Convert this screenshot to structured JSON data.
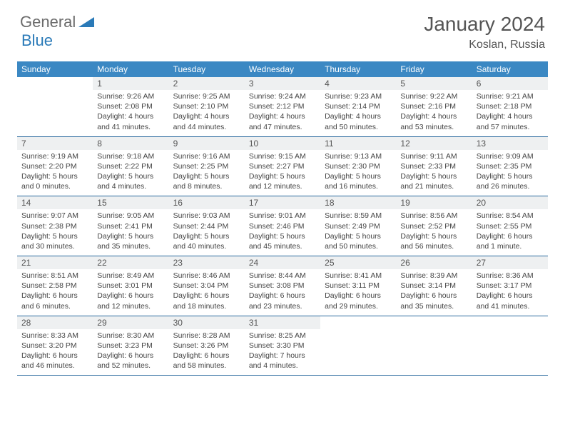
{
  "brand": {
    "part1": "General",
    "part2": "Blue"
  },
  "header": {
    "month": "January 2024",
    "location": "Koslan, Russia"
  },
  "colors": {
    "header_bg": "#3b88c3",
    "border": "#2a6a9e",
    "daynum_bg": "#eef0f1",
    "text": "#444444",
    "title": "#555555",
    "logo_gray": "#6b6b6b",
    "logo_blue": "#2a7ab8"
  },
  "dayNames": [
    "Sunday",
    "Monday",
    "Tuesday",
    "Wednesday",
    "Thursday",
    "Friday",
    "Saturday"
  ],
  "weeks": [
    {
      "nums": [
        "",
        "1",
        "2",
        "3",
        "4",
        "5",
        "6"
      ],
      "cells": [
        {
          "sunrise": "",
          "sunset": "",
          "daylight": ""
        },
        {
          "sunrise": "Sunrise: 9:26 AM",
          "sunset": "Sunset: 2:08 PM",
          "daylight": "Daylight: 4 hours and 41 minutes."
        },
        {
          "sunrise": "Sunrise: 9:25 AM",
          "sunset": "Sunset: 2:10 PM",
          "daylight": "Daylight: 4 hours and 44 minutes."
        },
        {
          "sunrise": "Sunrise: 9:24 AM",
          "sunset": "Sunset: 2:12 PM",
          "daylight": "Daylight: 4 hours and 47 minutes."
        },
        {
          "sunrise": "Sunrise: 9:23 AM",
          "sunset": "Sunset: 2:14 PM",
          "daylight": "Daylight: 4 hours and 50 minutes."
        },
        {
          "sunrise": "Sunrise: 9:22 AM",
          "sunset": "Sunset: 2:16 PM",
          "daylight": "Daylight: 4 hours and 53 minutes."
        },
        {
          "sunrise": "Sunrise: 9:21 AM",
          "sunset": "Sunset: 2:18 PM",
          "daylight": "Daylight: 4 hours and 57 minutes."
        }
      ]
    },
    {
      "nums": [
        "7",
        "8",
        "9",
        "10",
        "11",
        "12",
        "13"
      ],
      "cells": [
        {
          "sunrise": "Sunrise: 9:19 AM",
          "sunset": "Sunset: 2:20 PM",
          "daylight": "Daylight: 5 hours and 0 minutes."
        },
        {
          "sunrise": "Sunrise: 9:18 AM",
          "sunset": "Sunset: 2:22 PM",
          "daylight": "Daylight: 5 hours and 4 minutes."
        },
        {
          "sunrise": "Sunrise: 9:16 AM",
          "sunset": "Sunset: 2:25 PM",
          "daylight": "Daylight: 5 hours and 8 minutes."
        },
        {
          "sunrise": "Sunrise: 9:15 AM",
          "sunset": "Sunset: 2:27 PM",
          "daylight": "Daylight: 5 hours and 12 minutes."
        },
        {
          "sunrise": "Sunrise: 9:13 AM",
          "sunset": "Sunset: 2:30 PM",
          "daylight": "Daylight: 5 hours and 16 minutes."
        },
        {
          "sunrise": "Sunrise: 9:11 AM",
          "sunset": "Sunset: 2:33 PM",
          "daylight": "Daylight: 5 hours and 21 minutes."
        },
        {
          "sunrise": "Sunrise: 9:09 AM",
          "sunset": "Sunset: 2:35 PM",
          "daylight": "Daylight: 5 hours and 26 minutes."
        }
      ]
    },
    {
      "nums": [
        "14",
        "15",
        "16",
        "17",
        "18",
        "19",
        "20"
      ],
      "cells": [
        {
          "sunrise": "Sunrise: 9:07 AM",
          "sunset": "Sunset: 2:38 PM",
          "daylight": "Daylight: 5 hours and 30 minutes."
        },
        {
          "sunrise": "Sunrise: 9:05 AM",
          "sunset": "Sunset: 2:41 PM",
          "daylight": "Daylight: 5 hours and 35 minutes."
        },
        {
          "sunrise": "Sunrise: 9:03 AM",
          "sunset": "Sunset: 2:44 PM",
          "daylight": "Daylight: 5 hours and 40 minutes."
        },
        {
          "sunrise": "Sunrise: 9:01 AM",
          "sunset": "Sunset: 2:46 PM",
          "daylight": "Daylight: 5 hours and 45 minutes."
        },
        {
          "sunrise": "Sunrise: 8:59 AM",
          "sunset": "Sunset: 2:49 PM",
          "daylight": "Daylight: 5 hours and 50 minutes."
        },
        {
          "sunrise": "Sunrise: 8:56 AM",
          "sunset": "Sunset: 2:52 PM",
          "daylight": "Daylight: 5 hours and 56 minutes."
        },
        {
          "sunrise": "Sunrise: 8:54 AM",
          "sunset": "Sunset: 2:55 PM",
          "daylight": "Daylight: 6 hours and 1 minute."
        }
      ]
    },
    {
      "nums": [
        "21",
        "22",
        "23",
        "24",
        "25",
        "26",
        "27"
      ],
      "cells": [
        {
          "sunrise": "Sunrise: 8:51 AM",
          "sunset": "Sunset: 2:58 PM",
          "daylight": "Daylight: 6 hours and 6 minutes."
        },
        {
          "sunrise": "Sunrise: 8:49 AM",
          "sunset": "Sunset: 3:01 PM",
          "daylight": "Daylight: 6 hours and 12 minutes."
        },
        {
          "sunrise": "Sunrise: 8:46 AM",
          "sunset": "Sunset: 3:04 PM",
          "daylight": "Daylight: 6 hours and 18 minutes."
        },
        {
          "sunrise": "Sunrise: 8:44 AM",
          "sunset": "Sunset: 3:08 PM",
          "daylight": "Daylight: 6 hours and 23 minutes."
        },
        {
          "sunrise": "Sunrise: 8:41 AM",
          "sunset": "Sunset: 3:11 PM",
          "daylight": "Daylight: 6 hours and 29 minutes."
        },
        {
          "sunrise": "Sunrise: 8:39 AM",
          "sunset": "Sunset: 3:14 PM",
          "daylight": "Daylight: 6 hours and 35 minutes."
        },
        {
          "sunrise": "Sunrise: 8:36 AM",
          "sunset": "Sunset: 3:17 PM",
          "daylight": "Daylight: 6 hours and 41 minutes."
        }
      ]
    },
    {
      "nums": [
        "28",
        "29",
        "30",
        "31",
        "",
        "",
        ""
      ],
      "cells": [
        {
          "sunrise": "Sunrise: 8:33 AM",
          "sunset": "Sunset: 3:20 PM",
          "daylight": "Daylight: 6 hours and 46 minutes."
        },
        {
          "sunrise": "Sunrise: 8:30 AM",
          "sunset": "Sunset: 3:23 PM",
          "daylight": "Daylight: 6 hours and 52 minutes."
        },
        {
          "sunrise": "Sunrise: 8:28 AM",
          "sunset": "Sunset: 3:26 PM",
          "daylight": "Daylight: 6 hours and 58 minutes."
        },
        {
          "sunrise": "Sunrise: 8:25 AM",
          "sunset": "Sunset: 3:30 PM",
          "daylight": "Daylight: 7 hours and 4 minutes."
        },
        {
          "sunrise": "",
          "sunset": "",
          "daylight": ""
        },
        {
          "sunrise": "",
          "sunset": "",
          "daylight": ""
        },
        {
          "sunrise": "",
          "sunset": "",
          "daylight": ""
        }
      ]
    }
  ]
}
